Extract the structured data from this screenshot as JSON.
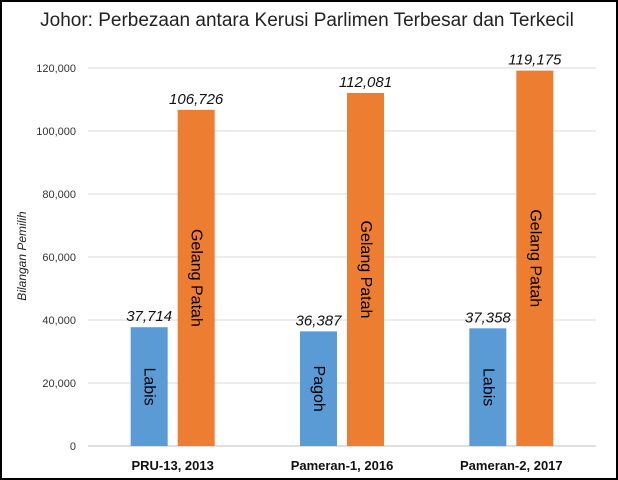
{
  "chart_data": {
    "type": "bar",
    "title": "Johor: Perbezaan antara Kerusi Parlimen Terbesar dan Terkecil",
    "xlabel": "",
    "ylabel": "Bilangan Pemilih",
    "ylim": [
      0,
      120000
    ],
    "yticks": [
      0,
      20000,
      40000,
      60000,
      80000,
      100000,
      120000
    ],
    "ytick_labels": [
      "0",
      "20,000",
      "40,000",
      "60,000",
      "80,000",
      "100,000",
      "120,000"
    ],
    "grid": true,
    "categories": [
      "PRU-13, 2013",
      "Pameran-1, 2016",
      "Pameran-2, 2017"
    ],
    "series": [
      {
        "color": "#5b9bd5",
        "values": [
          37714,
          36387,
          37358
        ],
        "value_labels": [
          "37,714",
          "36,387",
          "37,358"
        ],
        "bar_labels": [
          "Labis",
          "Pagoh",
          "Labis"
        ]
      },
      {
        "color": "#ed7d31",
        "values": [
          106726,
          112081,
          119175
        ],
        "value_labels": [
          "106,726",
          "112,081",
          "119,175"
        ],
        "bar_labels": [
          "Gelang Patah",
          "Gelang Patah",
          "Gelang Patah"
        ]
      }
    ]
  }
}
